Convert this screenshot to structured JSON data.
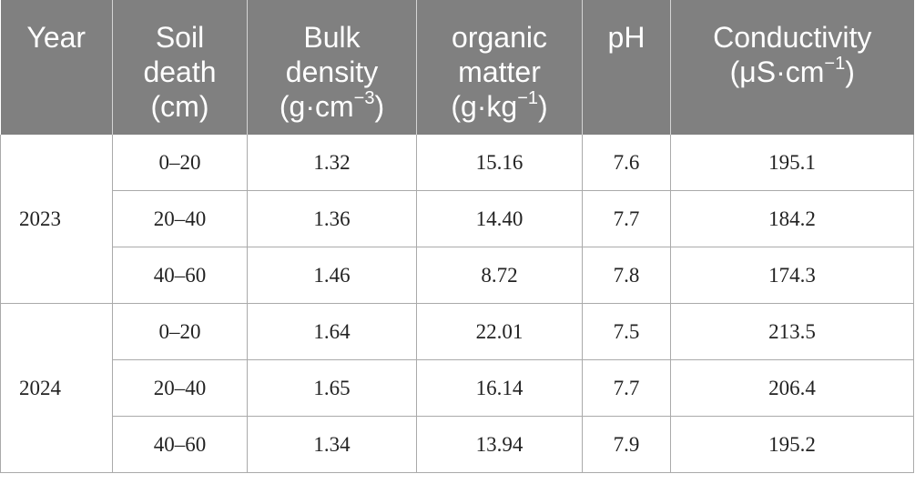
{
  "table": {
    "headers": [
      {
        "lines": [
          "Year"
        ]
      },
      {
        "lines": [
          "Soil",
          "death",
          "(cm)"
        ]
      },
      {
        "lines": [
          "Bulk",
          "density",
          "(g·cm",
          "−3",
          ")"
        ]
      },
      {
        "lines": [
          "organic",
          "matter",
          "(g·kg",
          "−1",
          ")"
        ]
      },
      {
        "lines": [
          "pH"
        ]
      },
      {
        "lines": [
          "Conductivity",
          "(μS·cm",
          "−1",
          ")"
        ]
      }
    ],
    "groups": [
      {
        "year": "2023",
        "rows": [
          {
            "depth": "0–20",
            "bulk_density": "1.32",
            "organic_matter": "15.16",
            "ph": "7.6",
            "conductivity": "195.1"
          },
          {
            "depth": "20–40",
            "bulk_density": "1.36",
            "organic_matter": "14.40",
            "ph": "7.7",
            "conductivity": "184.2"
          },
          {
            "depth": "40–60",
            "bulk_density": "1.46",
            "organic_matter": "8.72",
            "ph": "7.8",
            "conductivity": "174.3"
          }
        ]
      },
      {
        "year": "2024",
        "rows": [
          {
            "depth": "0–20",
            "bulk_density": "1.64",
            "organic_matter": "22.01",
            "ph": "7.5",
            "conductivity": "213.5"
          },
          {
            "depth": "20–40",
            "bulk_density": "1.65",
            "organic_matter": "16.14",
            "ph": "7.7",
            "conductivity": "206.4"
          },
          {
            "depth": "40–60",
            "bulk_density": "1.34",
            "organic_matter": "13.94",
            "ph": "7.9",
            "conductivity": "195.2"
          }
        ]
      }
    ]
  }
}
